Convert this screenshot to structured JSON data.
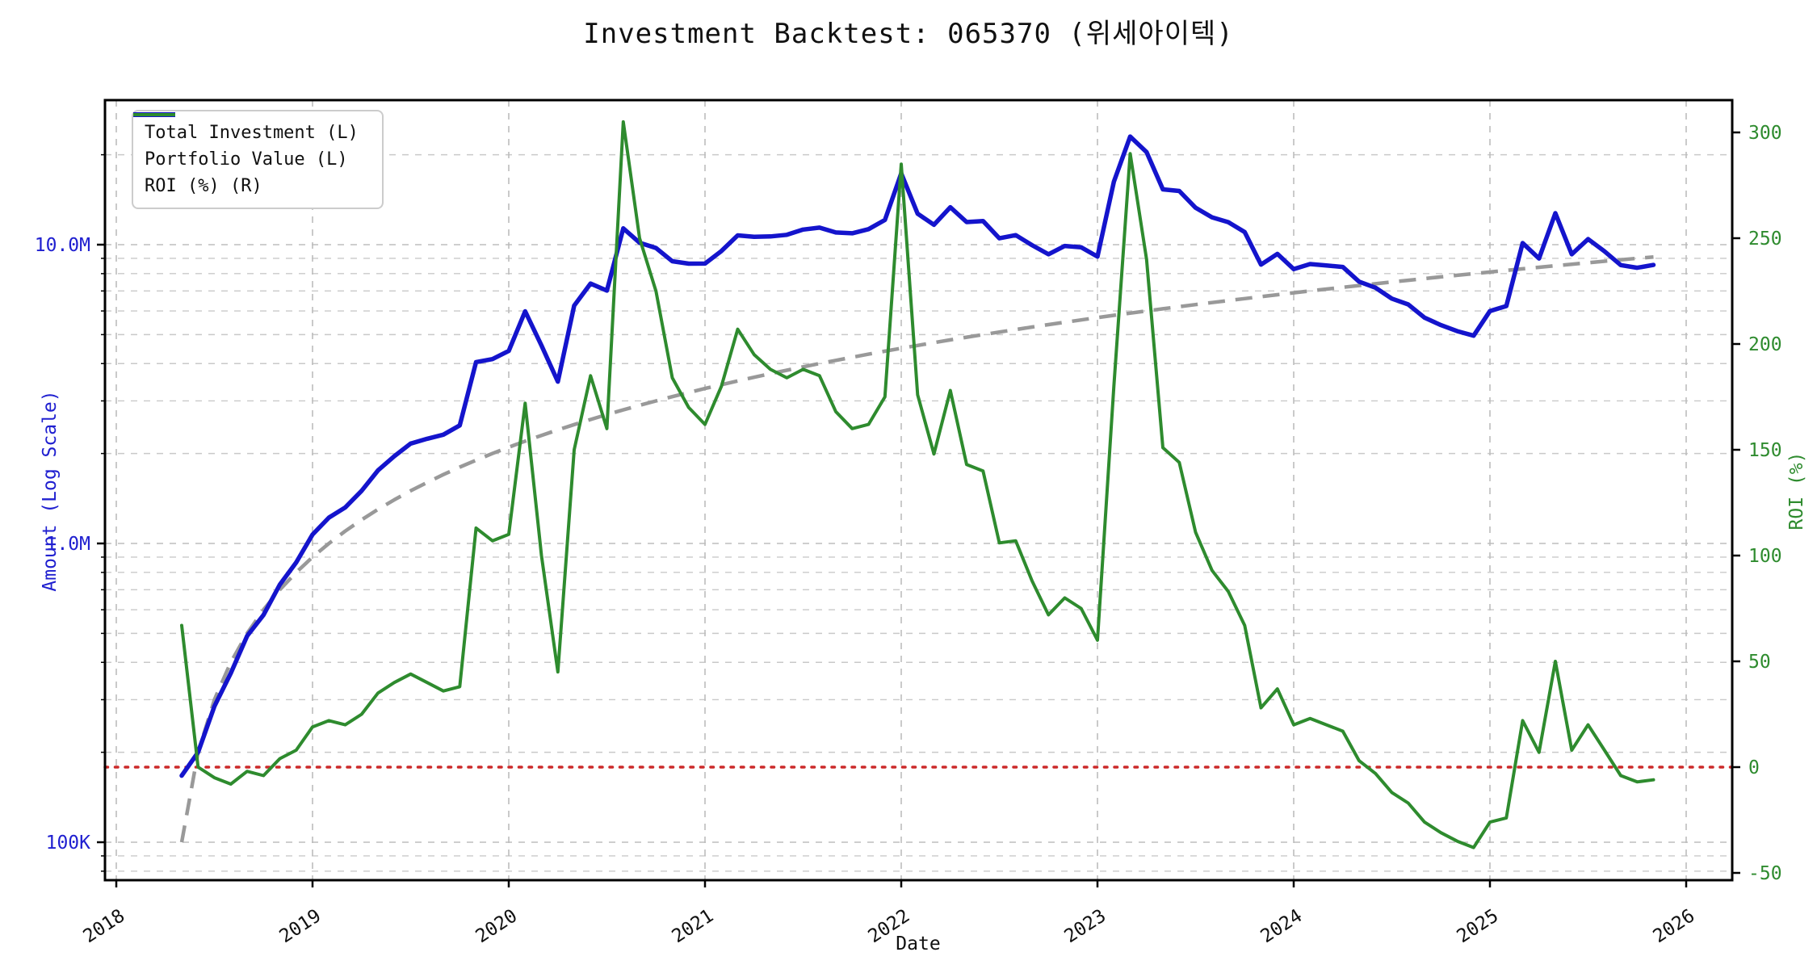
{
  "title": "Investment Backtest: 065370 (위세아이텍)",
  "legend": {
    "items": [
      {
        "label": "Total Investment (L)",
        "style": "dashed",
        "color": "#999999"
      },
      {
        "label": "Portfolio Value (L)",
        "style": "solid",
        "color": "#1414cc"
      },
      {
        "label": "ROI (%) (R)",
        "style": "solid",
        "color": "#2e8b2e"
      }
    ]
  },
  "axes": {
    "x_label": "Date",
    "y_left_label": "Amount (Log Scale)",
    "y_right_label": "ROI (%)",
    "x_tick_labels": [
      "2018",
      "2019",
      "2020",
      "2021",
      "2022",
      "2023",
      "2024",
      "2025",
      "2026"
    ],
    "y_left_tick_labels": [
      {
        "value": 10,
        "label": "10.0M"
      },
      {
        "value": 1,
        "label": "1.0M"
      },
      {
        "value": 0.1,
        "label": "100K"
      }
    ],
    "y_right_tick_labels": [
      {
        "value": 300,
        "label": "300"
      },
      {
        "value": 250,
        "label": "250"
      },
      {
        "value": 200,
        "label": "200"
      },
      {
        "value": 150,
        "label": "150"
      },
      {
        "value": 100,
        "label": "100"
      },
      {
        "value": 50,
        "label": "50"
      },
      {
        "value": 0,
        "label": "0"
      },
      {
        "value": -50,
        "label": "-50"
      }
    ]
  },
  "colors": {
    "portfolio": "#1414cc",
    "investment": "#999999",
    "roi": "#2e8b2e",
    "zero_line": "#cc2a2a",
    "grid": "#c9c9c9",
    "left_axis_text": "#2020d0",
    "right_axis_text": "#2e8b2e",
    "x_axis_text": "#111111",
    "spine": "#000000"
  },
  "chart_data": {
    "type": "line",
    "title": "Investment Backtest: 065370 (위세아이텍)",
    "xlabel": "Date",
    "ylabel_left": "Amount (Log Scale)",
    "ylabel_right": "ROI (%)",
    "x_axis_years": [
      2018,
      2019,
      2020,
      2021,
      2022,
      2023,
      2024,
      2025,
      2026
    ],
    "left_axis": {
      "scale": "log",
      "unit": "M",
      "ticks": [
        0.1,
        1,
        10
      ]
    },
    "right_axis": {
      "scale": "linear",
      "unit": "%",
      "ticks": [
        -50,
        0,
        50,
        100,
        150,
        200,
        250,
        300
      ]
    },
    "zero_roi_reference_line": 0,
    "x": [
      "2018-05",
      "2018-06",
      "2018-07",
      "2018-08",
      "2018-09",
      "2018-10",
      "2018-11",
      "2018-12",
      "2019-01",
      "2019-02",
      "2019-03",
      "2019-04",
      "2019-05",
      "2019-06",
      "2019-07",
      "2019-08",
      "2019-09",
      "2019-10",
      "2019-11",
      "2019-12",
      "2020-01",
      "2020-02",
      "2020-03",
      "2020-04",
      "2020-05",
      "2020-06",
      "2020-07",
      "2020-08",
      "2020-09",
      "2020-10",
      "2020-11",
      "2020-12",
      "2021-01",
      "2021-02",
      "2021-03",
      "2021-04",
      "2021-05",
      "2021-06",
      "2021-07",
      "2021-08",
      "2021-09",
      "2021-10",
      "2021-11",
      "2021-12",
      "2022-01",
      "2022-02",
      "2022-03",
      "2022-04",
      "2022-05",
      "2022-06",
      "2022-07",
      "2022-08",
      "2022-09",
      "2022-10",
      "2022-11",
      "2022-12",
      "2023-01",
      "2023-02",
      "2023-03",
      "2023-04",
      "2023-05",
      "2023-06",
      "2023-07",
      "2023-08",
      "2023-09",
      "2023-10",
      "2023-11",
      "2023-12",
      "2024-01",
      "2024-02",
      "2024-03",
      "2024-04",
      "2024-05",
      "2024-06",
      "2024-07",
      "2024-08",
      "2024-09",
      "2024-10",
      "2024-11",
      "2024-12",
      "2025-01",
      "2025-02",
      "2025-03",
      "2025-04",
      "2025-05",
      "2025-06",
      "2025-07",
      "2025-08",
      "2025-09",
      "2025-10",
      "2025-11"
    ],
    "series": [
      {
        "name": "Total Investment (L)",
        "axis": "left",
        "unit": "M",
        "values": [
          0.1,
          0.2,
          0.3,
          0.4,
          0.5,
          0.6,
          0.7,
          0.8,
          0.9,
          1.0,
          1.1,
          1.2,
          1.3,
          1.4,
          1.5,
          1.6,
          1.7,
          1.8,
          1.9,
          2.0,
          2.1,
          2.2,
          2.3,
          2.4,
          2.5,
          2.6,
          2.7,
          2.8,
          2.9,
          3.0,
          3.1,
          3.2,
          3.3,
          3.4,
          3.5,
          3.6,
          3.7,
          3.8,
          3.9,
          4.0,
          4.1,
          4.2,
          4.3,
          4.4,
          4.5,
          4.6,
          4.7,
          4.8,
          4.9,
          5.0,
          5.1,
          5.2,
          5.3,
          5.4,
          5.5,
          5.6,
          5.7,
          5.8,
          5.9,
          6.0,
          6.1,
          6.2,
          6.3,
          6.4,
          6.5,
          6.6,
          6.7,
          6.8,
          6.9,
          7.0,
          7.1,
          7.2,
          7.3,
          7.4,
          7.5,
          7.6,
          7.7,
          7.8,
          7.9,
          8.0,
          8.1,
          8.2,
          8.3,
          8.4,
          8.5,
          8.6,
          8.7,
          8.8,
          8.9,
          9.0,
          9.1
        ]
      },
      {
        "name": "Portfolio Value (L)",
        "axis": "left",
        "unit": "M",
        "values": [
          0.167,
          0.2,
          0.285,
          0.368,
          0.49,
          0.576,
          0.728,
          0.864,
          1.071,
          1.22,
          1.32,
          1.5,
          1.755,
          1.96,
          2.16,
          2.24,
          2.312,
          2.484,
          4.047,
          4.14,
          4.41,
          5.984,
          4.6,
          3.48,
          6.25,
          7.41,
          7.02,
          11.34,
          10.15,
          9.75,
          8.804,
          8.64,
          8.646,
          9.52,
          10.745,
          10.62,
          10.656,
          10.792,
          11.232,
          11.4,
          10.988,
          10.92,
          11.266,
          12.1,
          17.325,
          12.696,
          11.656,
          13.344,
          11.907,
          12.0,
          10.506,
          10.764,
          9.964,
          9.288,
          9.9,
          9.8,
          9.12,
          16.24,
          23.01,
          20.4,
          15.311,
          15.128,
          13.293,
          12.352,
          11.895,
          11.022,
          8.576,
          9.316,
          8.28,
          8.61,
          8.52,
          8.424,
          7.519,
          7.178,
          6.6,
          6.308,
          5.698,
          5.382,
          5.135,
          4.96,
          5.994,
          6.232,
          10.126,
          8.988,
          12.75,
          9.288,
          10.44,
          9.504,
          8.544,
          8.37,
          8.554
        ]
      },
      {
        "name": "ROI (%) (R)",
        "axis": "right",
        "unit": "%",
        "values": [
          67,
          0,
          -5,
          -8,
          -2,
          -4,
          4,
          8,
          19,
          22,
          20,
          25,
          35,
          40,
          44,
          40,
          36,
          38,
          113,
          107,
          110,
          172,
          100,
          45,
          150,
          185,
          160,
          305,
          250,
          225,
          184,
          170,
          162,
          180,
          207,
          195,
          188,
          184,
          188,
          185,
          168,
          160,
          162,
          175,
          285,
          176,
          148,
          178,
          143,
          140,
          106,
          107,
          88,
          72,
          80,
          75,
          60,
          180,
          290,
          240,
          151,
          144,
          111,
          93,
          83,
          67,
          28,
          37,
          20,
          23,
          20,
          17,
          3,
          -3,
          -12,
          -17,
          -26,
          -31,
          -35,
          -38,
          -26,
          -24,
          22,
          7,
          50,
          8,
          20,
          8,
          -4,
          -7,
          -6
        ]
      }
    ]
  }
}
